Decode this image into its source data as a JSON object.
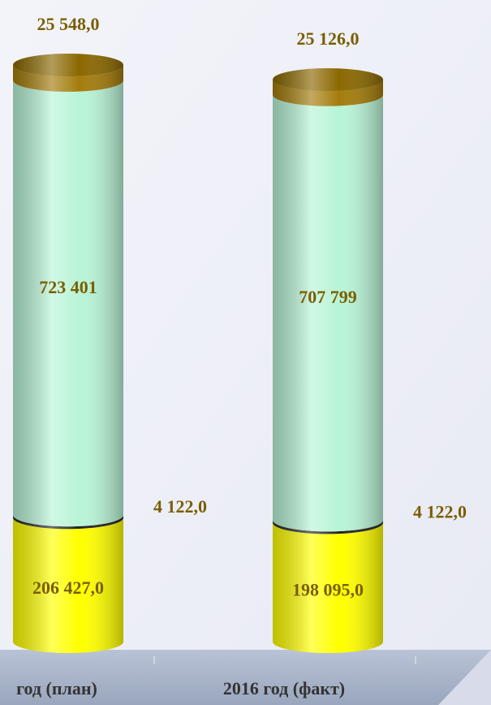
{
  "chart_data": {
    "type": "stacked-cylinder",
    "categories": [
      "год (план)",
      "2016 год (факт)"
    ],
    "series": [
      {
        "color": "#ffff00",
        "values": [
          206427,
          198095
        ],
        "value_labels": [
          "206 427,0",
          "198 095,0"
        ]
      },
      {
        "color": "#222222",
        "values": [
          4122,
          4122
        ],
        "value_labels": [
          "4 122,0",
          "4 122,0"
        ]
      },
      {
        "color": "#b8f4d6",
        "values": [
          723401,
          707799
        ],
        "value_labels": [
          "723 401",
          "707 799"
        ]
      },
      {
        "color": "#a37c0c",
        "values": [
          25548,
          25126
        ],
        "value_labels": [
          "25 548,0",
          "25 126,0"
        ]
      }
    ]
  }
}
